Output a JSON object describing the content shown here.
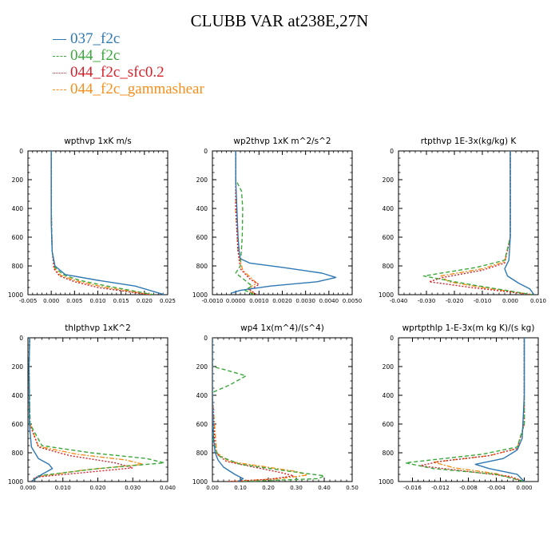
{
  "title": "CLUBB VAR at238E,27N",
  "colors": {
    "037_f2c": "#2e78b4",
    "044_f2c": "#3aa83a",
    "044_f2c_sfc0.2": "#d6202a",
    "044_f2c_gammashear": "#f78f1d"
  },
  "legend": [
    {
      "name": "037_f2c",
      "color": "#2e78b4",
      "style": "solid"
    },
    {
      "name": "044_f2c",
      "color": "#3aa83a",
      "style": "dashed"
    },
    {
      "name": "044_f2c_sfc0.2",
      "color": "#d6202a",
      "style": "dotted"
    },
    {
      "name": "044_f2c_gammashear",
      "color": "#f78f1d",
      "style": "dashdot"
    }
  ],
  "chart_data": [
    {
      "type": "line",
      "title": "wpthvp  1xK m/s",
      "xlim": [
        -0.005,
        0.025
      ],
      "xticks": [
        "-0.005",
        "0.000",
        "0.005",
        "0.010",
        "0.015",
        "0.020",
        "0.025"
      ],
      "ylim": [
        1000,
        0
      ],
      "yticks": [
        "0",
        "200",
        "400",
        "600",
        "800",
        "1000"
      ],
      "series": [
        {
          "name": "037_f2c",
          "x": [
            0.0,
            0.0,
            0.0,
            0.0002,
            0.0008,
            0.003,
            0.01,
            0.018,
            0.0243
          ],
          "y": [
            0,
            200,
            500,
            700,
            800,
            860,
            900,
            940,
            1000
          ]
        },
        {
          "name": "044_f2c",
          "x": [
            0.0,
            0.0,
            0.0002,
            0.0008,
            0.0025,
            0.006,
            0.012,
            0.022
          ],
          "y": [
            0,
            400,
            700,
            810,
            860,
            900,
            940,
            1000
          ]
        },
        {
          "name": "044_f2c_sfc0.2",
          "x": [
            0.0,
            0.0,
            0.0002,
            0.0006,
            0.0018,
            0.005,
            0.01,
            0.021
          ],
          "y": [
            0,
            400,
            700,
            820,
            870,
            910,
            950,
            1000
          ]
        },
        {
          "name": "044_f2c_gammashear",
          "x": [
            0.0,
            0.0,
            0.0002,
            0.0007,
            0.002,
            0.0055,
            0.011,
            0.0215
          ],
          "y": [
            0,
            400,
            700,
            815,
            865,
            905,
            945,
            1000
          ]
        }
      ]
    },
    {
      "type": "line",
      "title": "wp2thvp  1xK m^2/s^2",
      "xlim": [
        -0.001,
        0.005
      ],
      "xticks": [
        "-0.0010",
        "0.0000",
        "0.0010",
        "0.0020",
        "0.0030",
        "0.0040",
        "0.0050"
      ],
      "ylim": [
        1000,
        0
      ],
      "yticks": [
        "0",
        "200",
        "400",
        "600",
        "800",
        "1000"
      ],
      "series": [
        {
          "name": "037_f2c",
          "x": [
            0.0,
            0.0,
            5e-05,
            0.0001,
            0.00015,
            0.0002,
            0.0006,
            0.002,
            0.0037,
            0.0043,
            0.0035,
            0.0015,
            0.0002,
            -0.0002
          ],
          "y": [
            0,
            200,
            400,
            600,
            700,
            750,
            780,
            810,
            850,
            880,
            910,
            940,
            970,
            990
          ]
        },
        {
          "name": "044_f2c",
          "x": [
            0.0,
            0.0,
            0.00025,
            0.0003,
            0.00028,
            0.0002,
            0.0,
            0.0004,
            0.0007,
            0.0004,
            0.0008
          ],
          "y": [
            0,
            200,
            280,
            400,
            600,
            800,
            850,
            900,
            940,
            970,
            1000
          ]
        },
        {
          "name": "044_f2c_sfc0.2",
          "x": [
            0.0,
            0.0,
            0.0001,
            0.0002,
            0.0006,
            0.001,
            0.0006,
            0.0009
          ],
          "y": [
            0,
            400,
            700,
            820,
            890,
            930,
            965,
            1000
          ]
        },
        {
          "name": "044_f2c_gammashear",
          "x": [
            0.0,
            0.0,
            0.0001,
            0.0003,
            0.0007,
            0.0009,
            0.0005,
            0.0008
          ],
          "y": [
            0,
            400,
            700,
            830,
            890,
            920,
            960,
            1000
          ]
        }
      ]
    },
    {
      "type": "line",
      "title": "rtpthvp  1E-3x(kg/kg) K",
      "xlim": [
        -0.04,
        0.01
      ],
      "xticks": [
        "-0.040",
        "-0.030",
        "-0.020",
        "-0.010",
        "0.000",
        "0.010"
      ],
      "ylim": [
        1000,
        0
      ],
      "yticks": [
        "0",
        "200",
        "400",
        "600",
        "800",
        "1000"
      ],
      "series": [
        {
          "name": "037_f2c",
          "x": [
            0.0,
            0.0,
            0.0,
            -0.0005,
            -0.002,
            -0.001,
            0.003,
            0.007,
            0.0085
          ],
          "y": [
            0,
            200,
            600,
            760,
            820,
            870,
            920,
            960,
            1000
          ]
        },
        {
          "name": "044_f2c",
          "x": [
            0.0,
            0.0,
            -0.002,
            -0.012,
            -0.031,
            -0.02,
            -0.008,
            0.008
          ],
          "y": [
            0,
            600,
            760,
            810,
            870,
            910,
            950,
            1000
          ]
        },
        {
          "name": "044_f2c_sfc0.2",
          "x": [
            0.0,
            0.0,
            -0.002,
            -0.01,
            -0.024,
            -0.029,
            -0.014,
            0.008
          ],
          "y": [
            0,
            600,
            780,
            830,
            880,
            910,
            950,
            1000
          ]
        },
        {
          "name": "044_f2c_gammashear",
          "x": [
            0.0,
            0.0,
            -0.002,
            -0.01,
            -0.025,
            -0.022,
            -0.01,
            0.008
          ],
          "y": [
            0,
            600,
            770,
            820,
            870,
            910,
            950,
            1000
          ]
        }
      ]
    },
    {
      "type": "line",
      "title": "thlpthvp  1xK^2",
      "xlim": [
        0.0,
        0.04
      ],
      "xticks": [
        "0.000",
        "0.010",
        "0.020",
        "0.030",
        "0.040"
      ],
      "ylim": [
        1000,
        0
      ],
      "yticks": [
        "0",
        "200",
        "400",
        "600",
        "800",
        "1000"
      ],
      "series": [
        {
          "name": "037_f2c",
          "x": [
            0.0005,
            0.0003,
            0.0004,
            0.001,
            0.003,
            0.006,
            0.007,
            0.004,
            0.001
          ],
          "y": [
            0,
            200,
            600,
            760,
            840,
            880,
            910,
            950,
            1000
          ]
        },
        {
          "name": "044_f2c",
          "x": [
            0.0005,
            0.0003,
            0.0006,
            0.004,
            0.018,
            0.034,
            0.039,
            0.02,
            0.003,
            0.001
          ],
          "y": [
            0,
            200,
            600,
            750,
            800,
            840,
            870,
            910,
            960,
            1000
          ]
        },
        {
          "name": "044_f2c_sfc0.2",
          "x": [
            0.0005,
            0.0003,
            0.0005,
            0.003,
            0.012,
            0.025,
            0.03,
            0.015,
            0.002,
            0.001
          ],
          "y": [
            0,
            200,
            600,
            760,
            820,
            870,
            905,
            940,
            970,
            1000
          ]
        },
        {
          "name": "044_f2c_gammashear",
          "x": [
            0.0005,
            0.0003,
            0.0006,
            0.003,
            0.014,
            0.028,
            0.033,
            0.016,
            0.003,
            0.001
          ],
          "y": [
            0,
            200,
            600,
            755,
            810,
            850,
            880,
            920,
            965,
            1000
          ]
        }
      ]
    },
    {
      "type": "line",
      "title": "wp4  1x(m^4)/(s^4)",
      "xlim": [
        0.0,
        0.5
      ],
      "xticks": [
        "0.00",
        "0.10",
        "0.20",
        "0.30",
        "0.40",
        "0.50"
      ],
      "ylim": [
        1000,
        0
      ],
      "yticks": [
        "0",
        "200",
        "400",
        "600",
        "800",
        "1000"
      ],
      "series": [
        {
          "name": "037_f2c",
          "x": [
            0.0,
            0.0,
            0.004,
            0.01,
            0.02,
            0.04,
            0.08,
            0.11,
            0.09
          ],
          "y": [
            0,
            400,
            700,
            800,
            850,
            900,
            950,
            980,
            1000
          ]
        },
        {
          "name": "044_f2c",
          "x": [
            0.0,
            0.0,
            0.05,
            0.12,
            0.06,
            0.0,
            0.0,
            0.02,
            0.1,
            0.28,
            0.4,
            0.38,
            0.1
          ],
          "y": [
            0,
            200,
            225,
            265,
            330,
            380,
            700,
            820,
            880,
            930,
            960,
            980,
            1000
          ]
        },
        {
          "name": "044_f2c_sfc0.2",
          "x": [
            0.0,
            0.0,
            0.01,
            0.05,
            0.15,
            0.25,
            0.29,
            0.2,
            0.05
          ],
          "y": [
            0,
            400,
            800,
            860,
            900,
            940,
            960,
            985,
            1000
          ]
        },
        {
          "name": "044_f2c_gammashear",
          "x": [
            0.0,
            0.0,
            0.015,
            0.06,
            0.18,
            0.3,
            0.34,
            0.24,
            0.06
          ],
          "y": [
            0,
            400,
            800,
            860,
            895,
            930,
            955,
            980,
            1000
          ]
        }
      ]
    },
    {
      "type": "line",
      "title": "wprtpthlp  1-E-3x(m kg K)/(s kg)",
      "xlim": [
        -0.018,
        0.002
      ],
      "xticks": [
        "-0.016",
        "-0.012",
        "-0.008",
        "-0.004",
        "0.000"
      ],
      "ylim": [
        1000,
        0
      ],
      "yticks": [
        "0",
        "200",
        "400",
        "600",
        "800",
        "1000"
      ],
      "series": [
        {
          "name": "037_f2c",
          "x": [
            0.0,
            0.0,
            -0.0003,
            -0.001,
            -0.003,
            -0.007,
            -0.005,
            -0.001,
            0.0
          ],
          "y": [
            0,
            400,
            700,
            780,
            840,
            880,
            910,
            950,
            1000
          ]
        },
        {
          "name": "044_f2c",
          "x": [
            0.0,
            0.0,
            -0.001,
            -0.006,
            -0.017,
            -0.013,
            -0.004,
            0.0
          ],
          "y": [
            0,
            600,
            760,
            810,
            870,
            910,
            950,
            1000
          ]
        },
        {
          "name": "044_f2c_sfc0.2",
          "x": [
            0.0,
            0.0,
            -0.001,
            -0.005,
            -0.012,
            -0.015,
            -0.008,
            -0.002,
            0.0
          ],
          "y": [
            0,
            600,
            770,
            820,
            860,
            890,
            930,
            965,
            1000
          ]
        },
        {
          "name": "044_f2c_gammashear",
          "x": [
            0.0,
            0.0,
            -0.001,
            -0.005,
            -0.013,
            -0.01,
            -0.004,
            0.0
          ],
          "y": [
            0,
            600,
            770,
            820,
            865,
            905,
            945,
            1000
          ]
        }
      ]
    }
  ]
}
